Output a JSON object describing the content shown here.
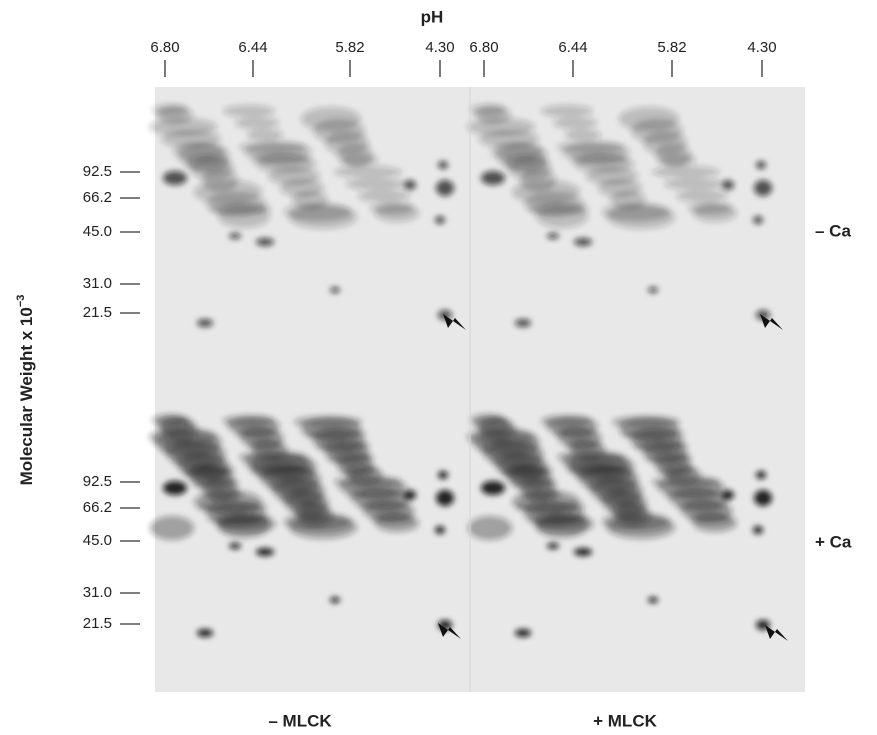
{
  "top_axis": {
    "title": "pH",
    "columns": [
      {
        "ticks": [
          "6.80",
          "6.44",
          "5.82",
          "4.30"
        ]
      },
      {
        "ticks": [
          "6.80",
          "6.44",
          "5.82",
          "4.30"
        ]
      }
    ]
  },
  "side_axis": {
    "title": "Molecular Weight x 10",
    "exponent": "−3"
  },
  "rows": [
    {
      "label": "– Ca",
      "mw_ticks": [
        "92.5",
        "66.2",
        "45.0",
        "31.0",
        "21.5"
      ]
    },
    {
      "label": "+ Ca",
      "mw_ticks": [
        "92.5",
        "66.2",
        "45.0",
        "31.0",
        "21.5"
      ]
    }
  ],
  "column_labels": [
    "– MLCK",
    "+ MLCK"
  ]
}
